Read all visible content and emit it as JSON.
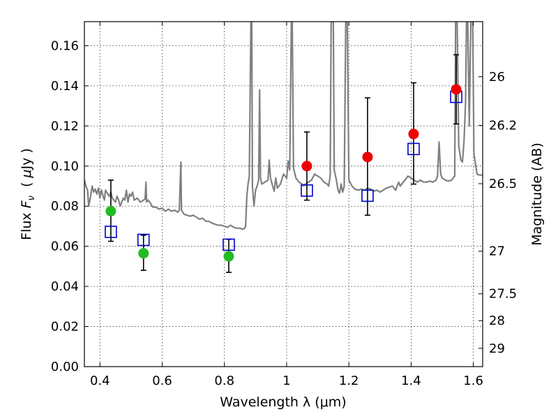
{
  "chart_data": {
    "type": "scatter",
    "xlabel": "Wavelength  λ (μm)",
    "ylabel": "Flux  F_ν  ( μJy )",
    "ylabel_parts": {
      "prefix": "Flux ",
      "symbol": "F",
      "subscript": "ν",
      "unit_open": "  ( ",
      "unit_mu": "μ",
      "unit": "Jy )"
    },
    "y2label": "Magnitude (AB)",
    "xlim": [
      0.35,
      1.63
    ],
    "ylim": [
      0.0,
      0.172
    ],
    "grid": true,
    "x_ticks": [
      0.4,
      0.6,
      0.8,
      1.0,
      1.2,
      1.4,
      1.6
    ],
    "x_tick_labels": [
      "0.4",
      "0.6",
      "0.8",
      "1",
      "1.2",
      "1.4",
      "1.6"
    ],
    "y_ticks": [
      0.0,
      0.02,
      0.04,
      0.06,
      0.08,
      0.1,
      0.12,
      0.14,
      0.16
    ],
    "y_tick_labels": [
      "0.00",
      "0.02",
      "0.04",
      "0.06",
      "0.08",
      "0.10",
      "0.12",
      "0.14",
      "0.16"
    ],
    "y2_ticks": [
      {
        "label": "26",
        "mag": 26.0
      },
      {
        "label": "26.2",
        "mag": 26.2
      },
      {
        "label": "26.5",
        "mag": 26.5
      },
      {
        "label": "27",
        "mag": 27.0
      },
      {
        "label": "27.5",
        "mag": 27.5
      },
      {
        "label": "28",
        "mag": 28.0
      },
      {
        "label": "29",
        "mag": 29.0
      }
    ],
    "colors": {
      "model": "#808080",
      "green": "#22bb22",
      "red": "#ee0000",
      "box": "#0000cc",
      "errorbar": "#000000"
    },
    "observed_green": [
      {
        "x": 0.435,
        "y": 0.0775,
        "yerr_low": 0.0625,
        "yerr_high": 0.093
      },
      {
        "x": 0.54,
        "y": 0.0565,
        "yerr_low": 0.048,
        "yerr_high": 0.0655
      },
      {
        "x": 0.814,
        "y": 0.055,
        "yerr_low": 0.047,
        "yerr_high": 0.0635
      }
    ],
    "observed_red": [
      {
        "x": 1.065,
        "y": 0.1,
        "yerr_low": 0.083,
        "yerr_high": 0.117
      },
      {
        "x": 1.26,
        "y": 0.1045,
        "yerr_low": 0.0755,
        "yerr_high": 0.134
      },
      {
        "x": 1.408,
        "y": 0.116,
        "yerr_low": 0.091,
        "yerr_high": 0.1415
      },
      {
        "x": 1.545,
        "y": 0.1382,
        "yerr_low": 0.121,
        "yerr_high": 0.1555
      }
    ],
    "model_bands": [
      {
        "x": 0.435,
        "y": 0.0672
      },
      {
        "x": 0.54,
        "y": 0.0632
      },
      {
        "x": 0.814,
        "y": 0.0608
      },
      {
        "x": 1.065,
        "y": 0.0878
      },
      {
        "x": 1.26,
        "y": 0.0852
      },
      {
        "x": 1.408,
        "y": 0.1085
      },
      {
        "x": 1.545,
        "y": 0.1345
      }
    ],
    "model_spectrum": [
      [
        0.35,
        0.093
      ],
      [
        0.355,
        0.09
      ],
      [
        0.36,
        0.088
      ],
      [
        0.364,
        0.08
      ],
      [
        0.37,
        0.085
      ],
      [
        0.375,
        0.09
      ],
      [
        0.38,
        0.087
      ],
      [
        0.385,
        0.0885
      ],
      [
        0.39,
        0.086
      ],
      [
        0.395,
        0.089
      ],
      [
        0.4,
        0.084
      ],
      [
        0.405,
        0.088
      ],
      [
        0.41,
        0.085
      ],
      [
        0.414,
        0.083
      ],
      [
        0.418,
        0.088
      ],
      [
        0.425,
        0.086
      ],
      [
        0.43,
        0.085
      ],
      [
        0.435,
        0.087
      ],
      [
        0.44,
        0.084
      ],
      [
        0.445,
        0.083
      ],
      [
        0.45,
        0.082
      ],
      [
        0.455,
        0.085
      ],
      [
        0.46,
        0.083
      ],
      [
        0.465,
        0.08
      ],
      [
        0.47,
        0.082
      ],
      [
        0.475,
        0.084
      ],
      [
        0.48,
        0.083
      ],
      [
        0.485,
        0.088
      ],
      [
        0.49,
        0.082
      ],
      [
        0.495,
        0.086
      ],
      [
        0.5,
        0.085
      ],
      [
        0.505,
        0.087
      ],
      [
        0.51,
        0.083
      ],
      [
        0.52,
        0.084
      ],
      [
        0.53,
        0.082
      ],
      [
        0.54,
        0.083
      ],
      [
        0.545,
        0.0835
      ],
      [
        0.548,
        0.092
      ],
      [
        0.55,
        0.082
      ],
      [
        0.555,
        0.083
      ],
      [
        0.56,
        0.082
      ],
      [
        0.57,
        0.0795
      ],
      [
        0.58,
        0.0795
      ],
      [
        0.59,
        0.0785
      ],
      [
        0.6,
        0.079
      ],
      [
        0.61,
        0.0775
      ],
      [
        0.62,
        0.0785
      ],
      [
        0.63,
        0.0775
      ],
      [
        0.64,
        0.078
      ],
      [
        0.65,
        0.077
      ],
      [
        0.655,
        0.078
      ],
      [
        0.66,
        0.102
      ],
      [
        0.662,
        0.078
      ],
      [
        0.67,
        0.076
      ],
      [
        0.68,
        0.0755
      ],
      [
        0.69,
        0.075
      ],
      [
        0.7,
        0.0755
      ],
      [
        0.71,
        0.0745
      ],
      [
        0.72,
        0.0735
      ],
      [
        0.73,
        0.074
      ],
      [
        0.74,
        0.0725
      ],
      [
        0.75,
        0.0725
      ],
      [
        0.76,
        0.0715
      ],
      [
        0.77,
        0.071
      ],
      [
        0.78,
        0.0705
      ],
      [
        0.79,
        0.0705
      ],
      [
        0.8,
        0.07
      ],
      [
        0.81,
        0.0695
      ],
      [
        0.82,
        0.0705
      ],
      [
        0.83,
        0.0695
      ],
      [
        0.84,
        0.069
      ],
      [
        0.85,
        0.069
      ],
      [
        0.86,
        0.0685
      ],
      [
        0.865,
        0.069
      ],
      [
        0.868,
        0.07
      ],
      [
        0.872,
        0.085
      ],
      [
        0.876,
        0.091
      ],
      [
        0.88,
        0.095
      ],
      [
        0.885,
        0.172
      ],
      [
        0.888,
        0.172
      ],
      [
        0.89,
        0.09
      ],
      [
        0.895,
        0.08
      ],
      [
        0.9,
        0.088
      ],
      [
        0.905,
        0.09
      ],
      [
        0.91,
        0.093
      ],
      [
        0.913,
        0.138
      ],
      [
        0.916,
        0.094
      ],
      [
        0.92,
        0.091
      ],
      [
        0.93,
        0.092
      ],
      [
        0.94,
        0.093
      ],
      [
        0.944,
        0.103
      ],
      [
        0.948,
        0.094
      ],
      [
        0.955,
        0.09
      ],
      [
        0.96,
        0.0875
      ],
      [
        0.965,
        0.094
      ],
      [
        0.97,
        0.089
      ],
      [
        0.98,
        0.091
      ],
      [
        0.99,
        0.096
      ],
      [
        1.0,
        0.094
      ],
      [
        1.005,
        0.1025
      ],
      [
        1.01,
        0.098
      ],
      [
        1.015,
        0.172
      ],
      [
        1.018,
        0.172
      ],
      [
        1.022,
        0.099
      ],
      [
        1.03,
        0.094
      ],
      [
        1.04,
        0.092
      ],
      [
        1.05,
        0.091
      ],
      [
        1.055,
        0.09
      ],
      [
        1.06,
        0.091
      ],
      [
        1.07,
        0.092
      ],
      [
        1.08,
        0.093
      ],
      [
        1.09,
        0.096
      ],
      [
        1.1,
        0.095
      ],
      [
        1.11,
        0.094
      ],
      [
        1.12,
        0.092
      ],
      [
        1.13,
        0.091
      ],
      [
        1.135,
        0.09
      ],
      [
        1.14,
        0.095
      ],
      [
        1.143,
        0.172
      ],
      [
        1.15,
        0.172
      ],
      [
        1.153,
        0.098
      ],
      [
        1.16,
        0.093
      ],
      [
        1.165,
        0.088
      ],
      [
        1.17,
        0.0865
      ],
      [
        1.175,
        0.091
      ],
      [
        1.18,
        0.087
      ],
      [
        1.185,
        0.09
      ],
      [
        1.19,
        0.172
      ],
      [
        1.195,
        0.172
      ],
      [
        1.2,
        0.093
      ],
      [
        1.21,
        0.09
      ],
      [
        1.22,
        0.0885
      ],
      [
        1.23,
        0.088
      ],
      [
        1.24,
        0.0885
      ],
      [
        1.25,
        0.088
      ],
      [
        1.26,
        0.089
      ],
      [
        1.27,
        0.0885
      ],
      [
        1.28,
        0.0875
      ],
      [
        1.29,
        0.088
      ],
      [
        1.3,
        0.087
      ],
      [
        1.31,
        0.088
      ],
      [
        1.32,
        0.089
      ],
      [
        1.33,
        0.0895
      ],
      [
        1.34,
        0.09
      ],
      [
        1.345,
        0.089
      ],
      [
        1.35,
        0.088
      ],
      [
        1.355,
        0.09
      ],
      [
        1.36,
        0.092
      ],
      [
        1.365,
        0.09
      ],
      [
        1.37,
        0.091
      ],
      [
        1.38,
        0.093
      ],
      [
        1.39,
        0.095
      ],
      [
        1.4,
        0.094
      ],
      [
        1.41,
        0.093
      ],
      [
        1.42,
        0.092
      ],
      [
        1.43,
        0.093
      ],
      [
        1.44,
        0.092
      ],
      [
        1.45,
        0.092
      ],
      [
        1.46,
        0.0925
      ],
      [
        1.47,
        0.092
      ],
      [
        1.48,
        0.093
      ],
      [
        1.485,
        0.095
      ],
      [
        1.49,
        0.112
      ],
      [
        1.495,
        0.096
      ],
      [
        1.5,
        0.094
      ],
      [
        1.51,
        0.093
      ],
      [
        1.52,
        0.0925
      ],
      [
        1.53,
        0.093
      ],
      [
        1.535,
        0.094
      ],
      [
        1.54,
        0.095
      ],
      [
        1.543,
        0.172
      ],
      [
        1.548,
        0.172
      ],
      [
        1.553,
        0.11
      ],
      [
        1.56,
        0.103
      ],
      [
        1.565,
        0.102
      ],
      [
        1.57,
        0.112
      ],
      [
        1.575,
        0.132
      ],
      [
        1.578,
        0.172
      ],
      [
        1.582,
        0.172
      ],
      [
        1.587,
        0.12
      ],
      [
        1.592,
        0.172
      ],
      [
        1.598,
        0.172
      ],
      [
        1.602,
        0.106
      ],
      [
        1.608,
        0.1
      ],
      [
        1.612,
        0.096
      ],
      [
        1.62,
        0.0955
      ],
      [
        1.63,
        0.0955
      ]
    ]
  }
}
